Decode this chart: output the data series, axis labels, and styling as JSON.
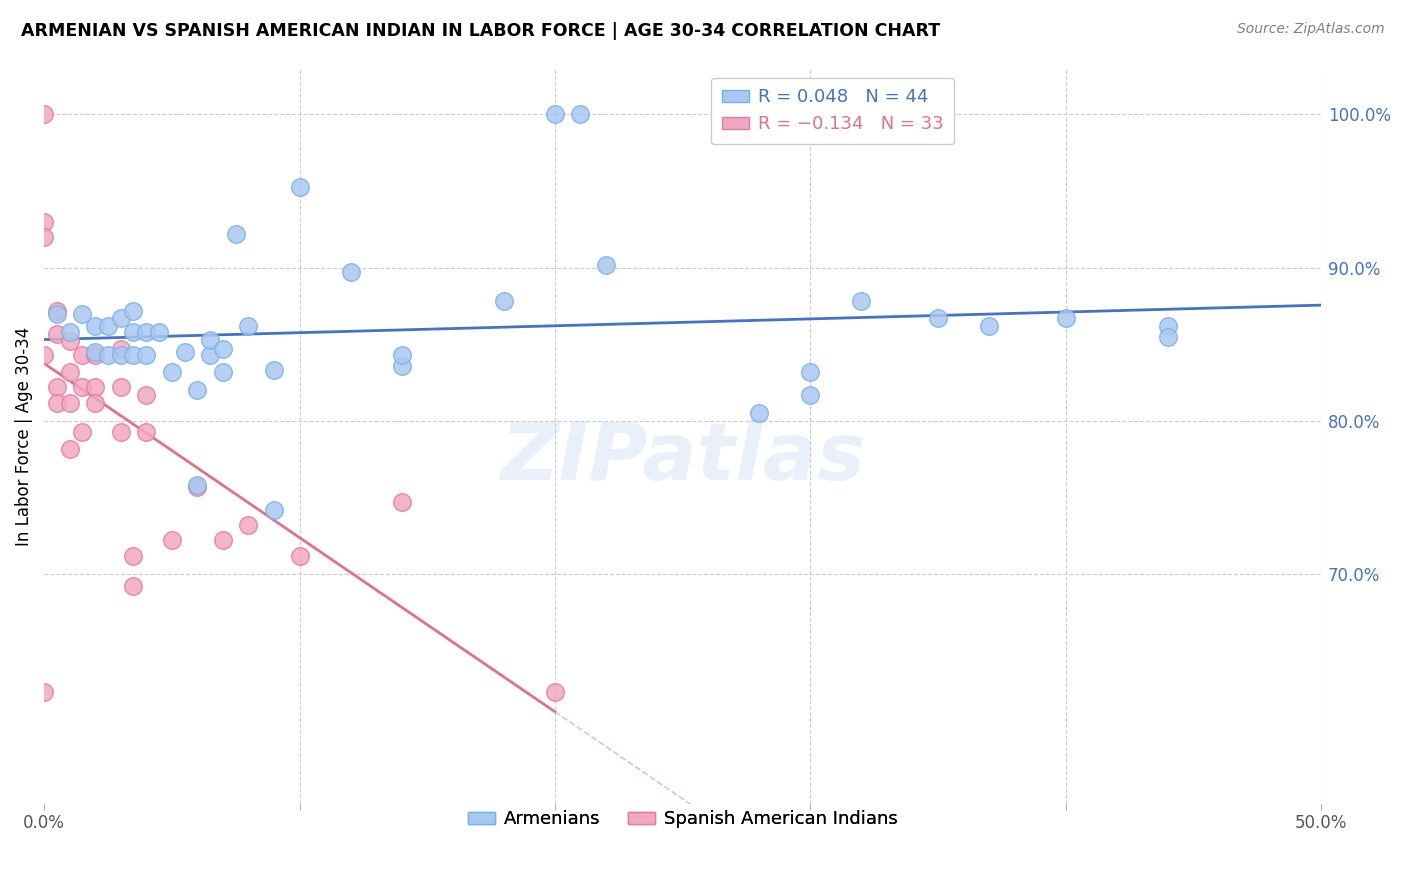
{
  "title": "ARMENIAN VS SPANISH AMERICAN INDIAN IN LABOR FORCE | AGE 30-34 CORRELATION CHART",
  "source": "Source: ZipAtlas.com",
  "ylabel_left": "In Labor Force | Age 30-34",
  "xlim": [
    0.0,
    0.5
  ],
  "ylim": [
    0.55,
    1.03
  ],
  "armenian_color": "#a8c8f0",
  "armenian_edge": "#7ab0e8",
  "spanish_color": "#f0a8c0",
  "spanish_edge": "#e87aa0",
  "blue_line_color": "#4472c4",
  "pink_line_color": "#e07090",
  "pink_dash_color": "#e0a0b8",
  "grid_color": "#cccccc",
  "watermark": "ZIPatlas",
  "armenian_x": [
    0.005,
    0.01,
    0.015,
    0.02,
    0.02,
    0.025,
    0.025,
    0.03,
    0.03,
    0.035,
    0.035,
    0.035,
    0.04,
    0.04,
    0.045,
    0.05,
    0.055,
    0.06,
    0.06,
    0.065,
    0.065,
    0.07,
    0.07,
    0.075,
    0.08,
    0.09,
    0.09,
    0.1,
    0.12,
    0.14,
    0.14,
    0.18,
    0.2,
    0.21,
    0.22,
    0.28,
    0.3,
    0.3,
    0.32,
    0.35,
    0.37,
    0.4,
    0.44,
    0.44
  ],
  "armenian_y": [
    0.87,
    0.858,
    0.87,
    0.845,
    0.862,
    0.862,
    0.843,
    0.867,
    0.843,
    0.843,
    0.858,
    0.872,
    0.858,
    0.843,
    0.858,
    0.832,
    0.845,
    0.758,
    0.82,
    0.843,
    0.853,
    0.832,
    0.847,
    0.922,
    0.862,
    0.833,
    0.742,
    0.953,
    0.897,
    0.836,
    0.843,
    0.878,
    1.0,
    1.0,
    0.902,
    0.805,
    0.832,
    0.817,
    0.878,
    0.867,
    0.862,
    0.867,
    0.862,
    0.855
  ],
  "spanish_x": [
    0.0,
    0.0,
    0.0,
    0.0,
    0.005,
    0.005,
    0.005,
    0.005,
    0.01,
    0.01,
    0.01,
    0.01,
    0.015,
    0.015,
    0.015,
    0.02,
    0.02,
    0.02,
    0.03,
    0.03,
    0.03,
    0.035,
    0.035,
    0.04,
    0.04,
    0.05,
    0.06,
    0.07,
    0.08,
    0.1,
    0.14,
    0.2,
    0.0
  ],
  "spanish_y": [
    0.93,
    0.92,
    0.843,
    0.623,
    0.872,
    0.857,
    0.822,
    0.812,
    0.852,
    0.832,
    0.812,
    0.782,
    0.843,
    0.822,
    0.793,
    0.843,
    0.822,
    0.812,
    0.847,
    0.822,
    0.793,
    0.692,
    0.712,
    0.817,
    0.793,
    0.722,
    0.757,
    0.722,
    0.732,
    0.712,
    0.747,
    0.623,
    1.0
  ]
}
